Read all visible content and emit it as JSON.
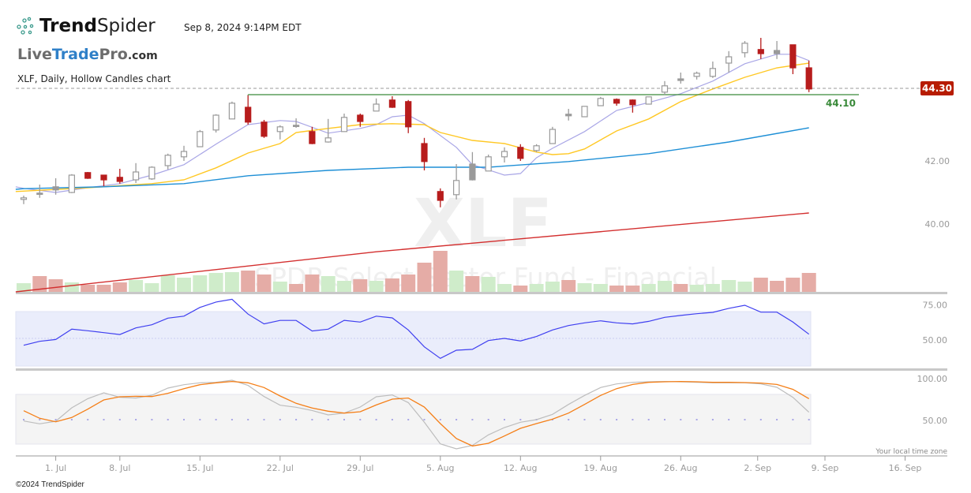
{
  "header": {
    "brand_bold": "Trend",
    "brand_light": "Spider",
    "timestamp": "Sep 8, 2024 9:14PM EDT",
    "partner_logo_parts": [
      "Live",
      "Trade",
      "Pro",
      ".com"
    ],
    "chart_subtitle": "XLF, Daily, Hollow Candles chart"
  },
  "watermark": {
    "symbol": "XLF",
    "name": "SPDR Select Sector Fund - Financial"
  },
  "footer": {
    "copyright": "©2024 TrendSpider",
    "timezone_note": "Your local time zone"
  },
  "colors": {
    "down": "#b71c1c",
    "neutral": "#9a9a9a",
    "vol_down": "#e5aca6",
    "vol_up": "#cfecca",
    "ma_fast": "#a9a6e6",
    "ma_mid": "#ffc824",
    "ma_slow": "#1e8fd6",
    "ma_long": "#d32f2f",
    "rsi": "#3f3ff0",
    "stoch_d": "#f57f17",
    "stoch_k": "#bdbdbd",
    "level": "#3a8a3a",
    "price_badge": "#b71c00"
  },
  "chart_data": {
    "type": "candlestick",
    "title": "XLF, Daily, Hollow Candles chart",
    "ylim": [
      37.5,
      46.5
    ],
    "price_ticks": [
      "42.00",
      "40.00"
    ],
    "price_tick_values": [
      42,
      40
    ],
    "last_price_label": "44.30",
    "last_price": 44.3,
    "level_label": "44.10",
    "level": 44.1,
    "level_start_index": 14,
    "dates": [
      "Jun 27",
      "Jun 28",
      "Jul 1",
      "Jul 2",
      "Jul 3",
      "Jul 5",
      "Jul 8",
      "Jul 9",
      "Jul 10",
      "Jul 11",
      "Jul 12",
      "Jul 15",
      "Jul 16",
      "Jul 17",
      "Jul 18",
      "Jul 19",
      "Jul 22",
      "Jul 23",
      "Jul 24",
      "Jul 25",
      "Jul 26",
      "Jul 29",
      "Jul 30",
      "Jul 31",
      "Aug 1",
      "Aug 2",
      "Aug 5",
      "Aug 6",
      "Aug 7",
      "Aug 8",
      "Aug 9",
      "Aug 12",
      "Aug 13",
      "Aug 14",
      "Aug 15",
      "Aug 16",
      "Aug 19",
      "Aug 20",
      "Aug 21",
      "Aug 22",
      "Aug 23",
      "Aug 26",
      "Aug 27",
      "Aug 28",
      "Aug 29",
      "Aug 30",
      "Sep 3",
      "Sep 4",
      "Sep 5",
      "Sep 6"
    ],
    "open": [
      40.78,
      40.98,
      41.18,
      41.0,
      41.63,
      41.55,
      41.48,
      41.4,
      41.43,
      41.85,
      42.13,
      42.45,
      42.98,
      43.33,
      43.7,
      43.23,
      42.93,
      43.13,
      42.93,
      42.6,
      42.93,
      43.45,
      43.58,
      43.93,
      43.88,
      42.55,
      41.03,
      40.93,
      41.9,
      41.68,
      42.13,
      42.43,
      42.33,
      42.55,
      43.48,
      43.4,
      43.75,
      43.95,
      43.93,
      43.8,
      44.18,
      44.6,
      44.68,
      44.68,
      45.1,
      45.43,
      45.53,
      45.5,
      45.68,
      44.95
    ],
    "high": [
      40.9,
      41.25,
      41.45,
      41.58,
      41.65,
      41.55,
      41.75,
      41.93,
      41.83,
      42.23,
      42.48,
      42.98,
      43.48,
      43.88,
      44.08,
      43.3,
      43.13,
      43.35,
      43.08,
      43.33,
      43.5,
      43.5,
      43.98,
      44.05,
      43.93,
      42.73,
      41.13,
      41.9,
      42.28,
      42.2,
      42.43,
      42.53,
      42.53,
      43.08,
      43.65,
      43.73,
      44.03,
      43.98,
      43.95,
      44.03,
      44.53,
      44.8,
      44.83,
      45.15,
      45.48,
      45.8,
      45.9,
      45.8,
      45.68,
      45.18
    ],
    "low": [
      40.63,
      40.83,
      40.93,
      40.98,
      41.43,
      41.2,
      41.28,
      41.3,
      41.4,
      41.73,
      42.0,
      42.45,
      42.9,
      43.33,
      43.15,
      42.73,
      42.68,
      43.05,
      42.53,
      42.58,
      42.93,
      43.08,
      43.58,
      43.68,
      42.88,
      41.7,
      40.53,
      40.78,
      41.38,
      41.68,
      41.95,
      42.0,
      42.28,
      42.55,
      43.28,
      43.4,
      43.75,
      43.75,
      43.53,
      43.8,
      44.08,
      44.45,
      44.58,
      44.63,
      44.8,
      45.28,
      45.23,
      45.23,
      44.75,
      44.18
    ],
    "close": [
      40.83,
      40.94,
      41.08,
      41.55,
      41.45,
      41.4,
      41.35,
      41.65,
      41.8,
      42.18,
      42.3,
      42.93,
      43.45,
      43.83,
      43.23,
      42.78,
      43.08,
      43.09,
      42.55,
      42.73,
      43.38,
      43.25,
      43.8,
      43.7,
      43.08,
      41.98,
      40.75,
      41.38,
      41.4,
      42.13,
      42.3,
      42.08,
      42.48,
      43.0,
      43.43,
      43.73,
      43.98,
      43.83,
      43.78,
      44.03,
      44.38,
      44.55,
      44.78,
      44.93,
      45.3,
      45.73,
      45.4,
      45.4,
      44.95,
      44.28
    ],
    "volume_relative": [
      11,
      20,
      16,
      12,
      9,
      9,
      12,
      15,
      11,
      21,
      18,
      21,
      24,
      25,
      27,
      22,
      13,
      10,
      22,
      20,
      14,
      16,
      14,
      17,
      22,
      37,
      52,
      27,
      20,
      19,
      10,
      8,
      10,
      13,
      15,
      11,
      10,
      8,
      8,
      10,
      14,
      10,
      9,
      10,
      15,
      13,
      18,
      14,
      18,
      24
    ],
    "moving_averages": [
      {
        "name": "fast",
        "points": [
          [
            -0.5,
            41.18
          ],
          [
            0,
            41.13
          ],
          [
            2,
            41.0
          ],
          [
            4,
            41.15
          ],
          [
            6,
            41.28
          ],
          [
            8,
            41.55
          ],
          [
            10,
            41.88
          ],
          [
            12,
            42.53
          ],
          [
            14,
            43.15
          ],
          [
            16,
            43.28
          ],
          [
            17,
            43.25
          ],
          [
            19,
            42.88
          ],
          [
            21,
            43.03
          ],
          [
            22,
            43.15
          ],
          [
            23,
            43.4
          ],
          [
            24,
            43.45
          ],
          [
            25,
            43.18
          ],
          [
            27,
            42.43
          ],
          [
            28,
            41.88
          ],
          [
            30,
            41.55
          ],
          [
            31,
            41.6
          ],
          [
            32,
            42.1
          ],
          [
            33,
            42.4
          ],
          [
            35,
            42.93
          ],
          [
            37,
            43.6
          ],
          [
            39,
            43.85
          ],
          [
            41,
            44.13
          ],
          [
            43,
            44.53
          ],
          [
            45,
            45.08
          ],
          [
            47,
            45.38
          ],
          [
            48,
            45.38
          ],
          [
            49,
            45.18
          ]
        ]
      },
      {
        "name": "mid",
        "points": [
          [
            -0.5,
            41.03
          ],
          [
            4,
            41.15
          ],
          [
            8,
            41.28
          ],
          [
            10,
            41.4
          ],
          [
            12,
            41.78
          ],
          [
            14,
            42.25
          ],
          [
            16,
            42.55
          ],
          [
            17,
            42.9
          ],
          [
            19,
            43.03
          ],
          [
            21,
            43.15
          ],
          [
            23,
            43.18
          ],
          [
            25,
            43.15
          ],
          [
            26,
            42.9
          ],
          [
            28,
            42.65
          ],
          [
            30,
            42.55
          ],
          [
            32,
            42.28
          ],
          [
            33,
            42.2
          ],
          [
            34,
            42.23
          ],
          [
            35,
            42.38
          ],
          [
            37,
            42.95
          ],
          [
            39,
            43.33
          ],
          [
            41,
            43.88
          ],
          [
            43,
            44.28
          ],
          [
            45,
            44.65
          ],
          [
            47,
            44.95
          ],
          [
            49,
            45.1
          ]
        ]
      },
      {
        "name": "slow",
        "points": [
          [
            -0.5,
            41.1
          ],
          [
            0,
            41.12
          ],
          [
            5,
            41.18
          ],
          [
            10,
            41.28
          ],
          [
            14,
            41.53
          ],
          [
            19,
            41.7
          ],
          [
            24,
            41.8
          ],
          [
            29,
            41.8
          ],
          [
            34,
            41.98
          ],
          [
            39,
            42.23
          ],
          [
            44,
            42.6
          ],
          [
            49,
            43.05
          ]
        ]
      },
      {
        "name": "long",
        "points": [
          [
            -0.5,
            37.85
          ],
          [
            22,
            39.12
          ],
          [
            49,
            40.35
          ]
        ]
      }
    ],
    "rsi": {
      "ticks": [
        "75.00",
        "50.00"
      ],
      "tick_values": [
        75,
        50
      ],
      "band": [
        30,
        70
      ],
      "values": [
        44.9,
        47.8,
        49.2,
        56.9,
        55.7,
        54.3,
        52.9,
        57.8,
        60.2,
        65.1,
        66.6,
        73.1,
        77.1,
        79.2,
        68.1,
        60.8,
        63.4,
        63.4,
        55.5,
        56.9,
        63.5,
        62.2,
        66.6,
        65.3,
        56.3,
        43.7,
        35.1,
        41.2,
        41.8,
        48.4,
        50.0,
        48.1,
        51.4,
        56.3,
        59.6,
        61.6,
        63.1,
        61.6,
        60.8,
        62.7,
        65.7,
        67.1,
        68.4,
        69.4,
        72.4,
        74.7,
        69.6,
        69.6,
        62.2,
        53.1
      ]
    },
    "stochastic": {
      "ticks": [
        "100.00",
        "50.00"
      ],
      "tick_values": [
        100,
        50
      ],
      "band": [
        20,
        80
      ],
      "d": [
        60.9,
        51.6,
        47.4,
        52.6,
        62.8,
        74.0,
        77.9,
        78.5,
        78.2,
        82.1,
        87.8,
        92.6,
        94.9,
        96.5,
        94.9,
        89.1,
        78.8,
        69.9,
        64.1,
        60.3,
        58.0,
        59.6,
        67.9,
        75.0,
        76.3,
        65.4,
        45.2,
        26.9,
        17.9,
        21.2,
        30.1,
        39.4,
        45.2,
        50.6,
        58.0,
        68.6,
        79.5,
        87.8,
        92.9,
        95.5,
        96.2,
        96.5,
        96.2,
        95.5,
        95.5,
        95.2,
        94.6,
        92.9,
        86.9,
        75.6
      ],
      "k": [
        48.4,
        44.9,
        48.1,
        64.4,
        75.6,
        82.7,
        77.2,
        76.3,
        79.8,
        88.5,
        92.6,
        94.9,
        95.5,
        98.1,
        91.7,
        78.2,
        67.6,
        65.1,
        61.2,
        55.8,
        58.0,
        65.4,
        77.9,
        80.1,
        70.8,
        46.8,
        20.5,
        14.4,
        18.6,
        31.4,
        40.4,
        46.8,
        50.0,
        56.4,
        68.6,
        79.5,
        89.1,
        93.6,
        95.5,
        96.2,
        96.5,
        96.2,
        95.5,
        94.9,
        94.9,
        94.9,
        93.6,
        89.4,
        77.2,
        59.0
      ]
    },
    "x_ticks": [
      {
        "label": "1. Jul",
        "index": 2
      },
      {
        "label": "8. Jul",
        "index": 6
      },
      {
        "label": "15. Jul",
        "index": 11
      },
      {
        "label": "22. Jul",
        "index": 16
      },
      {
        "label": "29. Jul",
        "index": 21
      },
      {
        "label": "5. Aug",
        "index": 26
      },
      {
        "label": "12. Aug",
        "index": 31
      },
      {
        "label": "19. Aug",
        "index": 36
      },
      {
        "label": "26. Aug",
        "index": 41
      },
      {
        "label": "2. Sep",
        "index": 45.8
      },
      {
        "label": "9. Sep",
        "index": 50
      },
      {
        "label": "16. Sep",
        "index": 55
      }
    ]
  }
}
